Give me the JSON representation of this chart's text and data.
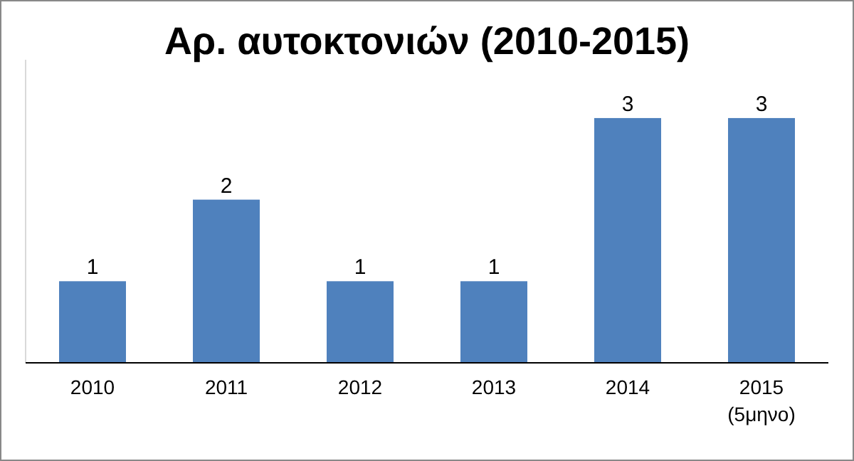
{
  "chart_data": {
    "type": "bar",
    "title": "Αρ. αυτοκτονιών (2010-2015)",
    "categories": [
      "2010",
      "2011",
      "2012",
      "2013",
      "2014",
      "2015\n(5μηνο)"
    ],
    "values": [
      1,
      2,
      1,
      1,
      3,
      3
    ],
    "color": "#4f81bd",
    "data_labels": true
  }
}
